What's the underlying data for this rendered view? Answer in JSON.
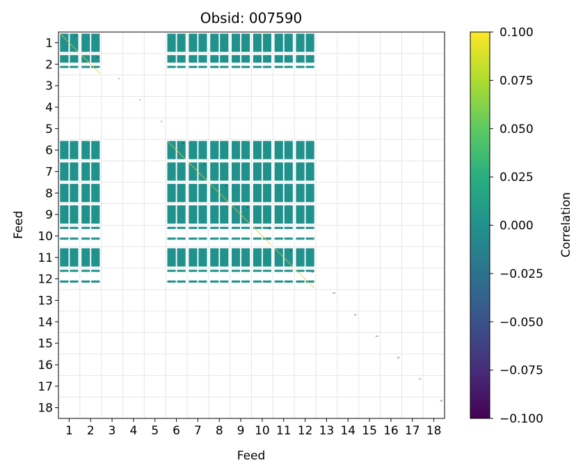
{
  "chart_data": {
    "type": "heatmap",
    "title": "Obsid: 007590",
    "xlabel": "Feed",
    "ylabel": "Feed",
    "feeds": [
      1,
      2,
      3,
      4,
      5,
      6,
      7,
      8,
      9,
      10,
      11,
      12,
      13,
      14,
      15,
      16,
      17,
      18
    ],
    "x_ticks": [
      "1",
      "2",
      "3",
      "4",
      "5",
      "6",
      "7",
      "8",
      "9",
      "10",
      "11",
      "12",
      "13",
      "14",
      "15",
      "16",
      "17",
      "18"
    ],
    "y_ticks": [
      "1",
      "2",
      "3",
      "4",
      "5",
      "6",
      "7",
      "8",
      "9",
      "10",
      "11",
      "12",
      "13",
      "14",
      "15",
      "16",
      "17",
      "18"
    ],
    "active_feeds": [
      1,
      2,
      6,
      7,
      8,
      9,
      10,
      11,
      12
    ],
    "sidebands": 4,
    "correlation_value": 0.0,
    "blank_feeds": [
      3,
      4,
      5,
      13,
      14,
      15,
      16,
      17,
      18
    ],
    "gaps": {
      "1": [],
      "2": [
        [
          0,
          2
        ],
        [
          2,
          3
        ]
      ],
      "6": [],
      "7": [],
      "8": [],
      "9": [],
      "10": [
        [
          0,
          1
        ],
        [
          2,
          3
        ]
      ],
      "11": [],
      "12": [
        [
          0,
          1
        ],
        [
          2,
          3
        ]
      ]
    },
    "diagonal_labels": [
      "1",
      "2",
      "3",
      "4",
      "5",
      "6",
      "7",
      "8",
      "9",
      "10",
      "11",
      "12",
      "13",
      "14",
      "15",
      "16",
      "17",
      "18"
    ],
    "colorbar": {
      "label": "Correlation",
      "colormap": "viridis",
      "vmin": -0.1,
      "vmax": 0.1,
      "ticks": [
        "0.100",
        "0.075",
        "0.050",
        "0.025",
        "0.000",
        "−0.025",
        "−0.050",
        "−0.075",
        "−0.100"
      ],
      "tick_values": [
        0.1,
        0.075,
        0.05,
        0.025,
        0.0,
        -0.025,
        -0.05,
        -0.075,
        -0.1
      ]
    },
    "grid": true
  },
  "colors": {
    "zero": "#21918c",
    "grid": "#e6e6e6",
    "diagonal_line": "#d8c84a"
  }
}
